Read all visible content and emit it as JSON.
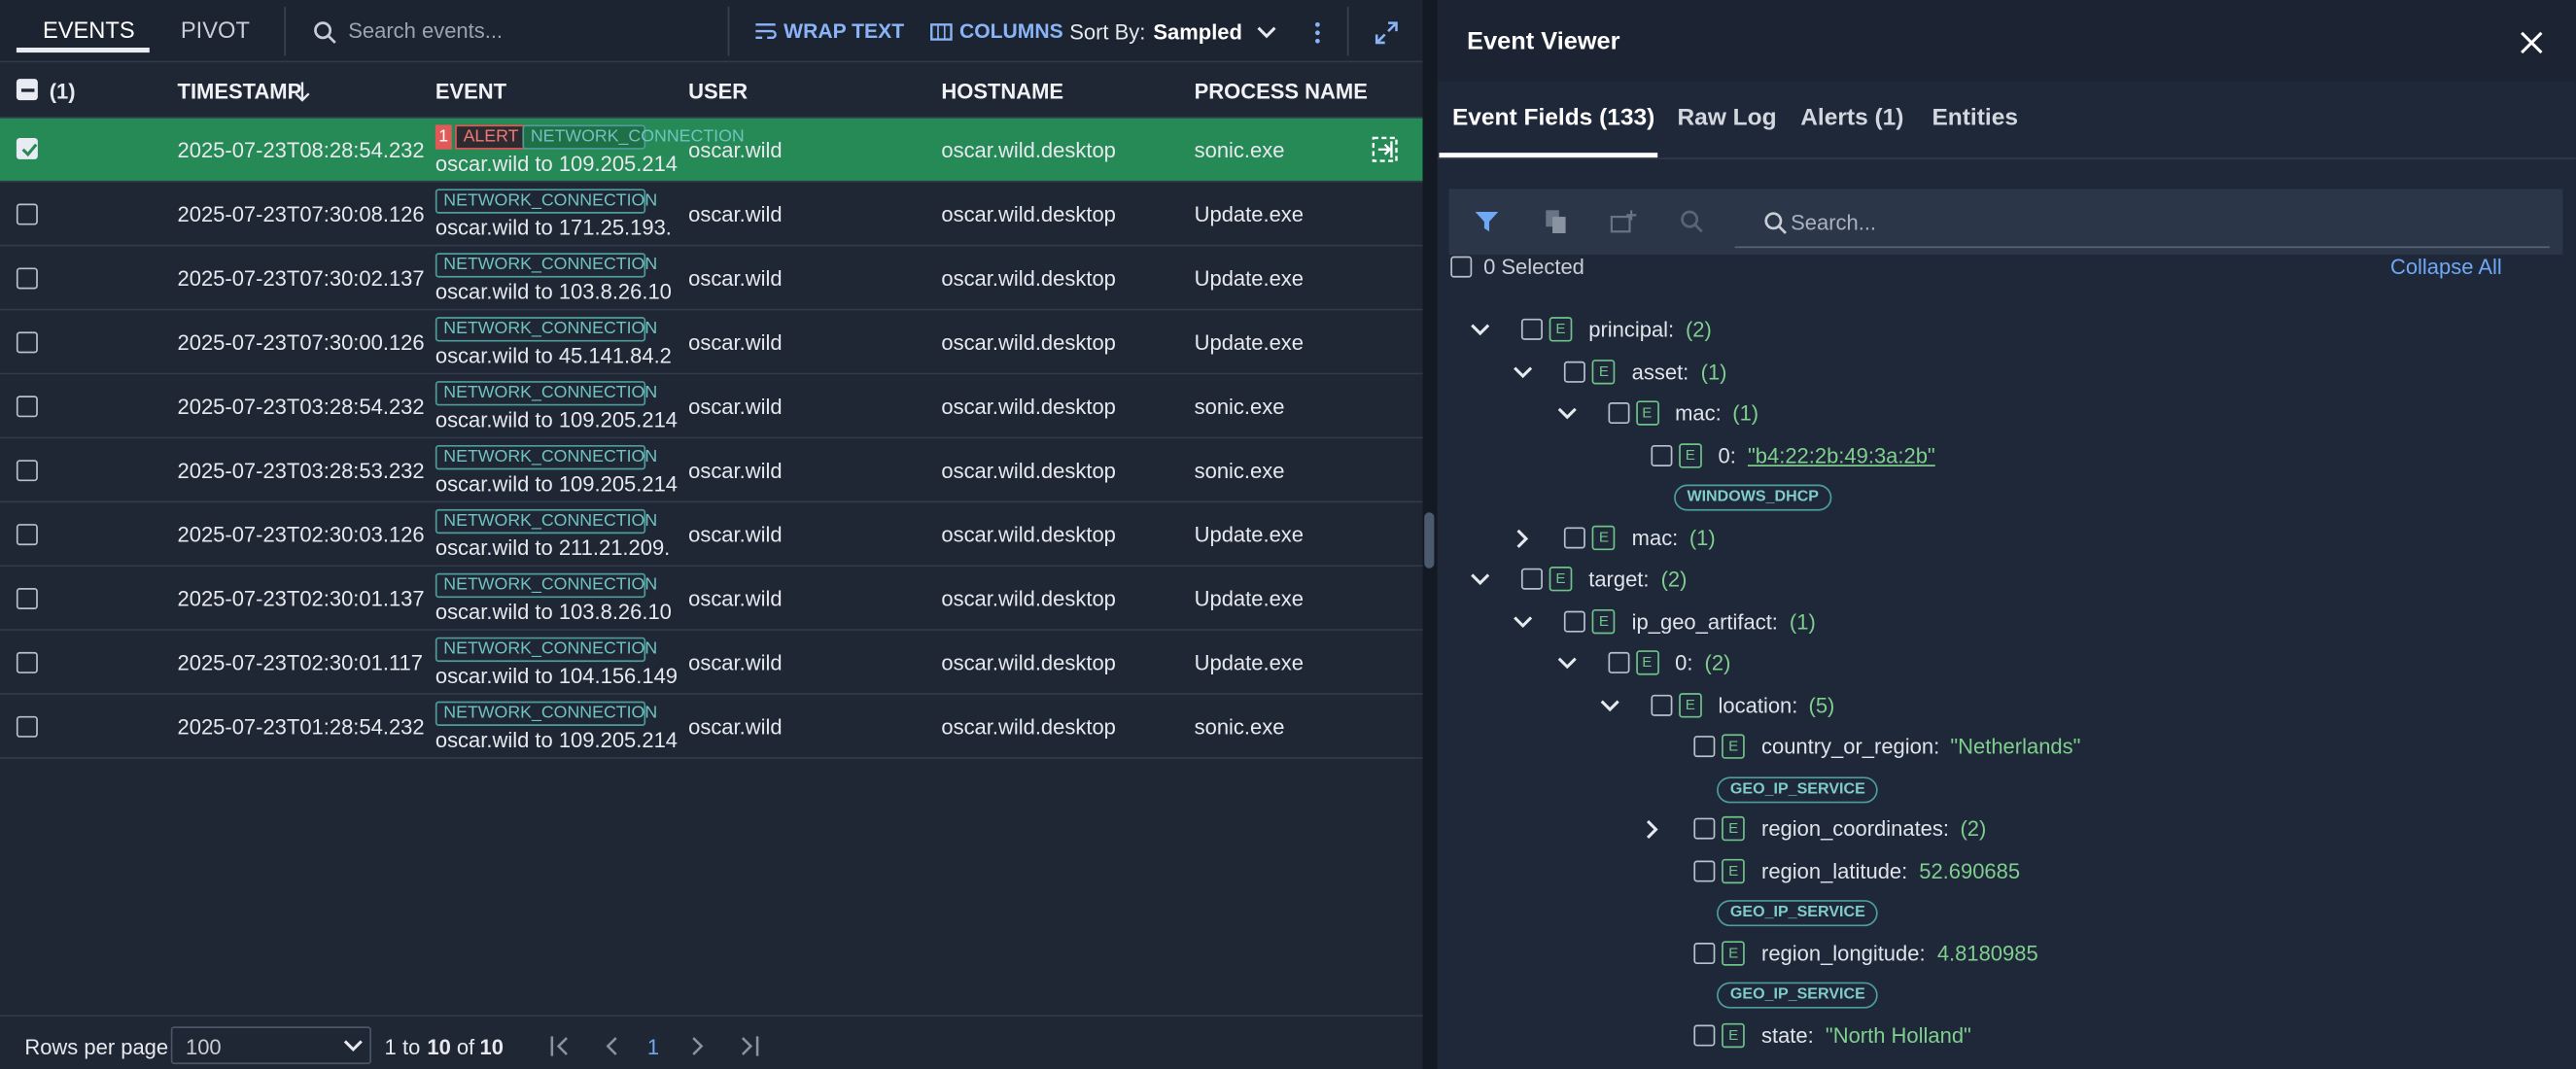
{
  "left": {
    "tabs": [
      "EVENTS",
      "PIVOT"
    ],
    "search_placeholder": "Search events...",
    "wrap_text": "WRAP TEXT",
    "columns_button": "COLUMNS",
    "sort_label": "Sort By:",
    "sort_value": "Sampled",
    "table": {
      "selected_count": "(1)",
      "columns": [
        "TIMESTAMP",
        "EVENT",
        "USER",
        "HOSTNAME",
        "PROCESS NAME"
      ],
      "rows": [
        {
          "checked": true,
          "timestamp": "2025-07-23T08:28:54.232",
          "alert_count": "1",
          "alert": "ALERT",
          "tag": "NETWORK_CONNECTION",
          "event": "oscar.wild to 109.205.214",
          "user": "oscar.wild",
          "hostname": "oscar.wild.desktop",
          "process": "sonic.exe"
        },
        {
          "checked": false,
          "timestamp": "2025-07-23T07:30:08.126",
          "tag": "NETWORK_CONNECTION",
          "event": "oscar.wild to 171.25.193.",
          "user": "oscar.wild",
          "hostname": "oscar.wild.desktop",
          "process": "Update.exe"
        },
        {
          "checked": false,
          "timestamp": "2025-07-23T07:30:02.137",
          "tag": "NETWORK_CONNECTION",
          "event": "oscar.wild to 103.8.26.10",
          "user": "oscar.wild",
          "hostname": "oscar.wild.desktop",
          "process": "Update.exe"
        },
        {
          "checked": false,
          "timestamp": "2025-07-23T07:30:00.126",
          "tag": "NETWORK_CONNECTION",
          "event": "oscar.wild to 45.141.84.2",
          "user": "oscar.wild",
          "hostname": "oscar.wild.desktop",
          "process": "Update.exe"
        },
        {
          "checked": false,
          "timestamp": "2025-07-23T03:28:54.232",
          "tag": "NETWORK_CONNECTION",
          "event": "oscar.wild to 109.205.214",
          "user": "oscar.wild",
          "hostname": "oscar.wild.desktop",
          "process": "sonic.exe"
        },
        {
          "checked": false,
          "timestamp": "2025-07-23T03:28:53.232",
          "tag": "NETWORK_CONNECTION",
          "event": "oscar.wild to 109.205.214",
          "user": "oscar.wild",
          "hostname": "oscar.wild.desktop",
          "process": "sonic.exe"
        },
        {
          "checked": false,
          "timestamp": "2025-07-23T02:30:03.126",
          "tag": "NETWORK_CONNECTION",
          "event": "oscar.wild to 211.21.209.",
          "user": "oscar.wild",
          "hostname": "oscar.wild.desktop",
          "process": "Update.exe"
        },
        {
          "checked": false,
          "timestamp": "2025-07-23T02:30:01.137",
          "tag": "NETWORK_CONNECTION",
          "event": "oscar.wild to 103.8.26.10",
          "user": "oscar.wild",
          "hostname": "oscar.wild.desktop",
          "process": "Update.exe"
        },
        {
          "checked": false,
          "timestamp": "2025-07-23T02:30:01.117",
          "tag": "NETWORK_CONNECTION",
          "event": "oscar.wild to 104.156.149",
          "user": "oscar.wild",
          "hostname": "oscar.wild.desktop",
          "process": "Update.exe"
        },
        {
          "checked": false,
          "timestamp": "2025-07-23T01:28:54.232",
          "tag": "NETWORK_CONNECTION",
          "event": "oscar.wild to 109.205.214",
          "user": "oscar.wild",
          "hostname": "oscar.wild.desktop",
          "process": "sonic.exe"
        }
      ]
    },
    "footer": {
      "rows_per_page": "Rows per page",
      "page_size": "100",
      "range_start": "1",
      "to": "to",
      "range_end": "10",
      "of": "of",
      "total": "10",
      "page": "1"
    }
  },
  "viewer": {
    "title": "Event Viewer",
    "tabs": [
      "Event Fields (133)",
      "Raw Log",
      "Alerts (1)",
      "Entities"
    ],
    "search_placeholder": "Search...",
    "selected": "0 Selected",
    "collapse_all": "Collapse All",
    "field_icon": "E",
    "tree": [
      {
        "level": 0,
        "expand": "down",
        "key": "principal:",
        "count": "(2)"
      },
      {
        "level": 1,
        "expand": "down",
        "key": "asset:",
        "count": "(1)"
      },
      {
        "level": 2,
        "expand": "down",
        "key": "mac:",
        "count": "(1)"
      },
      {
        "level": 3,
        "key": "0:",
        "value": "\"b4:22:2b:49:3a:2b\"",
        "link": true,
        "badge": "WINDOWS_DHCP"
      },
      {
        "level": 1,
        "expand": "right",
        "key": "mac:",
        "count": "(1)"
      },
      {
        "level": 0,
        "expand": "down",
        "key": "target:",
        "count": "(2)"
      },
      {
        "level": 1,
        "expand": "down",
        "key": "ip_geo_artifact:",
        "count": "(1)"
      },
      {
        "level": 2,
        "expand": "down",
        "key": "0:",
        "count": "(2)"
      },
      {
        "level": 3,
        "expand": "down",
        "key": "location:",
        "count": "(5)"
      },
      {
        "level": 4,
        "key": "country_or_region:",
        "value": "\"Netherlands\"",
        "badge": "GEO_IP_SERVICE"
      },
      {
        "level": 4,
        "expand": "right",
        "key": "region_coordinates:",
        "count": "(2)"
      },
      {
        "level": 4,
        "key": "region_latitude:",
        "value": "52.690685",
        "badge": "GEO_IP_SERVICE"
      },
      {
        "level": 4,
        "key": "region_longitude:",
        "value": "4.8180985",
        "badge": "GEO_IP_SERVICE"
      },
      {
        "level": 4,
        "key": "state:",
        "value": "\"North Holland\""
      }
    ]
  }
}
